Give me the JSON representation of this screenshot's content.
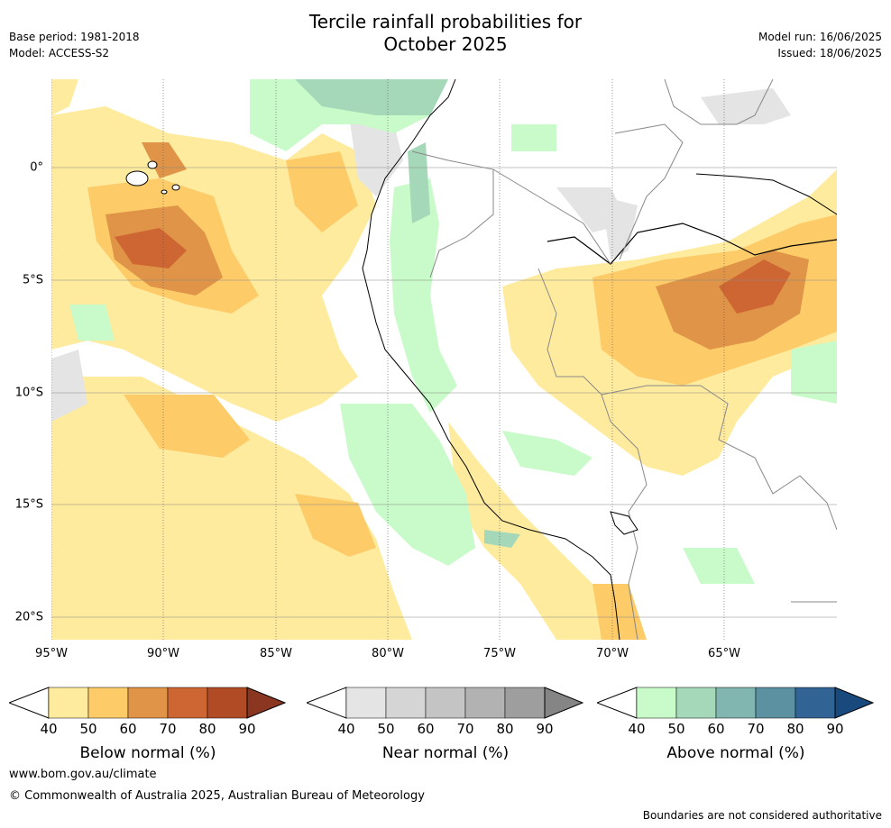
{
  "title_line1": "Tercile rainfall probabilities for",
  "title_line2": "October 2025",
  "meta_left": {
    "base_period": "Base period: 1981-2018",
    "model": "Model: ACCESS-S2"
  },
  "meta_right": {
    "model_run": "Model run: 16/06/2025",
    "issued": "Issued: 18/06/2025"
  },
  "axes": {
    "lon_labels": [
      "95°W",
      "90°W",
      "85°W",
      "80°W",
      "75°W",
      "70°W",
      "65°W"
    ],
    "lat_labels": [
      "0°",
      "5°S",
      "10°S",
      "15°S",
      "20°S"
    ]
  },
  "colorbars": [
    {
      "title": "Below normal (%)",
      "ticks": [
        "40",
        "50",
        "60",
        "70",
        "80",
        "90"
      ],
      "colors": [
        "#ffeb9e",
        "#fdcb68",
        "#e09447",
        "#cd6632",
        "#b04b25",
        "#8a3620"
      ]
    },
    {
      "title": "Near normal (%)",
      "ticks": [
        "40",
        "50",
        "60",
        "70",
        "80",
        "90"
      ],
      "colors": [
        "#e4e4e4",
        "#d5d5d5",
        "#c4c4c4",
        "#b2b2b2",
        "#9e9e9e",
        "#858585"
      ]
    },
    {
      "title": "Above normal (%)",
      "ticks": [
        "40",
        "50",
        "60",
        "70",
        "80",
        "90"
      ],
      "colors": [
        "#c9fac9",
        "#a5d8b8",
        "#80b6af",
        "#5b91a0",
        "#316494",
        "#184a7e"
      ]
    }
  ],
  "footer": {
    "website": "www.bom.gov.au/climate",
    "copyright": "© Commonwealth of Australia 2025, Australian Bureau of Meteorology",
    "disclaimer": "Boundaries are not considered authoritative"
  }
}
